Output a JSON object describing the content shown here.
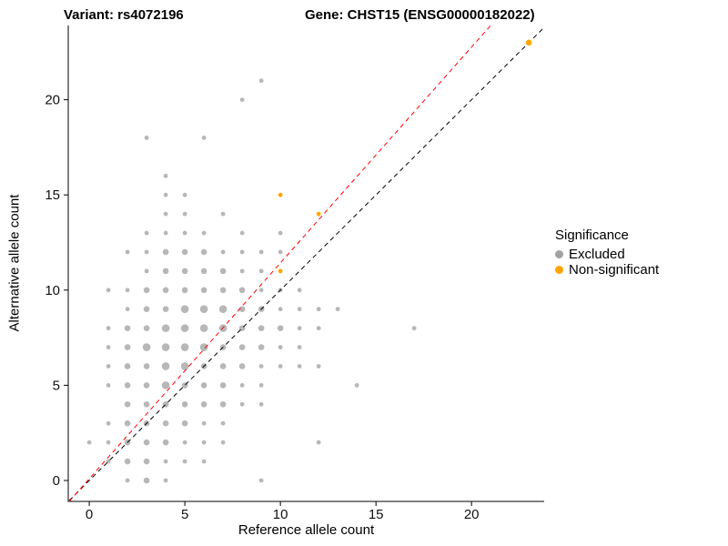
{
  "chart_data": {
    "type": "scatter",
    "title_left": "Variant: rs4072196",
    "title_right": "Gene: CHST15 (ENSG00000182022)",
    "xlabel": "Reference allele count",
    "ylabel": "Alternative allele count",
    "xlim": [
      -1.1,
      23.8
    ],
    "ylim": [
      -1.1,
      23.9
    ],
    "x_ticks": [
      0,
      5,
      10,
      15,
      20
    ],
    "y_ticks": [
      0,
      5,
      10,
      15,
      20
    ],
    "grid": false,
    "legend_title": "Significance",
    "legend_position": "right",
    "series": [
      {
        "name": "Excluded",
        "color": "#707070",
        "opacity": 0.5,
        "points": [
          [
            2,
            0,
            1
          ],
          [
            3,
            0,
            2
          ],
          [
            4,
            0,
            1
          ],
          [
            9,
            0,
            1
          ],
          [
            1,
            1,
            1
          ],
          [
            2,
            1,
            2
          ],
          [
            3,
            1,
            2
          ],
          [
            4,
            1,
            1
          ],
          [
            5,
            1,
            1
          ],
          [
            6,
            1,
            1
          ],
          [
            0,
            2,
            1
          ],
          [
            1,
            2,
            1
          ],
          [
            2,
            2,
            2
          ],
          [
            3,
            2,
            2
          ],
          [
            4,
            2,
            2
          ],
          [
            5,
            2,
            1
          ],
          [
            6,
            2,
            1
          ],
          [
            7,
            2,
            1
          ],
          [
            12,
            2,
            1
          ],
          [
            1,
            3,
            1
          ],
          [
            2,
            3,
            2
          ],
          [
            3,
            3,
            2
          ],
          [
            4,
            3,
            2
          ],
          [
            5,
            3,
            2
          ],
          [
            6,
            3,
            1
          ],
          [
            7,
            3,
            1
          ],
          [
            2,
            4,
            2
          ],
          [
            3,
            4,
            2
          ],
          [
            4,
            4,
            2
          ],
          [
            5,
            4,
            2
          ],
          [
            6,
            4,
            2
          ],
          [
            7,
            4,
            2
          ],
          [
            8,
            4,
            1
          ],
          [
            9,
            4,
            1
          ],
          [
            1,
            5,
            1
          ],
          [
            2,
            5,
            2
          ],
          [
            3,
            5,
            2
          ],
          [
            4,
            5,
            3
          ],
          [
            5,
            5,
            2
          ],
          [
            6,
            5,
            2
          ],
          [
            7,
            5,
            2
          ],
          [
            8,
            5,
            1
          ],
          [
            9,
            5,
            1
          ],
          [
            14,
            5,
            1
          ],
          [
            1,
            6,
            1
          ],
          [
            2,
            6,
            2
          ],
          [
            3,
            6,
            2
          ],
          [
            4,
            6,
            3
          ],
          [
            5,
            6,
            3
          ],
          [
            6,
            6,
            2
          ],
          [
            7,
            6,
            2
          ],
          [
            8,
            6,
            2
          ],
          [
            9,
            6,
            1
          ],
          [
            10,
            6,
            1
          ],
          [
            11,
            6,
            1
          ],
          [
            12,
            6,
            1
          ],
          [
            1,
            7,
            1
          ],
          [
            2,
            7,
            2
          ],
          [
            3,
            7,
            3
          ],
          [
            4,
            7,
            3
          ],
          [
            5,
            7,
            3
          ],
          [
            6,
            7,
            3
          ],
          [
            7,
            7,
            2
          ],
          [
            8,
            7,
            2
          ],
          [
            9,
            7,
            2
          ],
          [
            10,
            7,
            1
          ],
          [
            11,
            7,
            1
          ],
          [
            1,
            8,
            1
          ],
          [
            2,
            8,
            2
          ],
          [
            3,
            8,
            2
          ],
          [
            4,
            8,
            3
          ],
          [
            5,
            8,
            3
          ],
          [
            6,
            8,
            3
          ],
          [
            7,
            8,
            3
          ],
          [
            8,
            8,
            2
          ],
          [
            9,
            8,
            2
          ],
          [
            10,
            8,
            2
          ],
          [
            11,
            8,
            1
          ],
          [
            12,
            8,
            1
          ],
          [
            17,
            8,
            1
          ],
          [
            2,
            9,
            1
          ],
          [
            3,
            9,
            2
          ],
          [
            4,
            9,
            2
          ],
          [
            5,
            9,
            3
          ],
          [
            6,
            9,
            3
          ],
          [
            7,
            9,
            3
          ],
          [
            8,
            9,
            2
          ],
          [
            9,
            9,
            2
          ],
          [
            10,
            9,
            1
          ],
          [
            11,
            9,
            1
          ],
          [
            12,
            9,
            1
          ],
          [
            13,
            9,
            1
          ],
          [
            1,
            10,
            1
          ],
          [
            2,
            10,
            1
          ],
          [
            3,
            10,
            2
          ],
          [
            4,
            10,
            2
          ],
          [
            5,
            10,
            2
          ],
          [
            6,
            10,
            2
          ],
          [
            7,
            10,
            2
          ],
          [
            8,
            10,
            2
          ],
          [
            9,
            10,
            1
          ],
          [
            10,
            10,
            1
          ],
          [
            11,
            10,
            1
          ],
          [
            3,
            11,
            1
          ],
          [
            4,
            11,
            2
          ],
          [
            5,
            11,
            2
          ],
          [
            6,
            11,
            2
          ],
          [
            7,
            11,
            2
          ],
          [
            8,
            11,
            1
          ],
          [
            9,
            11,
            1
          ],
          [
            2,
            12,
            1
          ],
          [
            3,
            12,
            1
          ],
          [
            4,
            12,
            2
          ],
          [
            5,
            12,
            2
          ],
          [
            6,
            12,
            2
          ],
          [
            7,
            12,
            1
          ],
          [
            8,
            12,
            1
          ],
          [
            9,
            12,
            1
          ],
          [
            10,
            12,
            1
          ],
          [
            3,
            13,
            1
          ],
          [
            4,
            13,
            1
          ],
          [
            5,
            13,
            1
          ],
          [
            6,
            13,
            1
          ],
          [
            8,
            13,
            1
          ],
          [
            10,
            13,
            1
          ],
          [
            4,
            14,
            1
          ],
          [
            5,
            14,
            1
          ],
          [
            7,
            14,
            1
          ],
          [
            4,
            15,
            1
          ],
          [
            5,
            15,
            1
          ],
          [
            4,
            16,
            1
          ],
          [
            3,
            18,
            1
          ],
          [
            6,
            18,
            1
          ],
          [
            8,
            20,
            1
          ],
          [
            9,
            21,
            1
          ]
        ]
      },
      {
        "name": "Non-significant",
        "color": "#FFA500",
        "opacity": 1,
        "points": [
          [
            10,
            15,
            1
          ],
          [
            12,
            14,
            1
          ],
          [
            10,
            11,
            1
          ],
          [
            23,
            23,
            2
          ]
        ]
      }
    ],
    "lines": [
      {
        "name": "identity",
        "color": "#000000",
        "dash": "5 4",
        "x1": -1.05,
        "y1": -1.05,
        "x2": 23.8,
        "y2": 23.8
      },
      {
        "name": "fitted-ratio",
        "color": "#FF0000",
        "dash": "5 4",
        "x1": -1.05,
        "y1": -1.1,
        "x2": 21.0,
        "y2": 23.9
      }
    ]
  }
}
